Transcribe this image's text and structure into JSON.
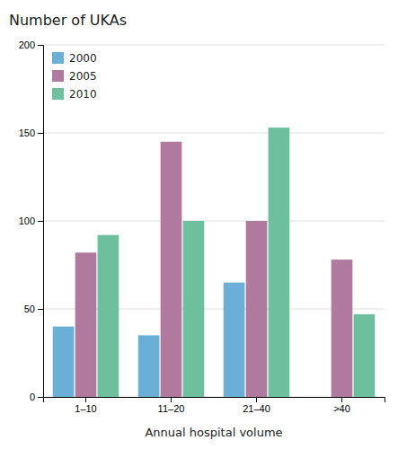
{
  "chart_data": {
    "type": "bar",
    "title": "Number of UKAs",
    "xlabel": "Annual hospital volume",
    "categories": [
      "1–10",
      "11–20",
      "21–40",
      ">40"
    ],
    "series": [
      {
        "name": "2000",
        "color": "#6baed6",
        "values": [
          40,
          35,
          65,
          0
        ]
      },
      {
        "name": "2005",
        "color": "#b07a9e",
        "values": [
          82,
          145,
          100,
          78
        ]
      },
      {
        "name": "2010",
        "color": "#6dbf9e",
        "values": [
          92,
          100,
          153,
          47
        ]
      }
    ],
    "ylim": [
      0,
      200
    ],
    "yticks": [
      0,
      50,
      100,
      150,
      200
    ],
    "grid": true,
    "legend": "upper left"
  }
}
